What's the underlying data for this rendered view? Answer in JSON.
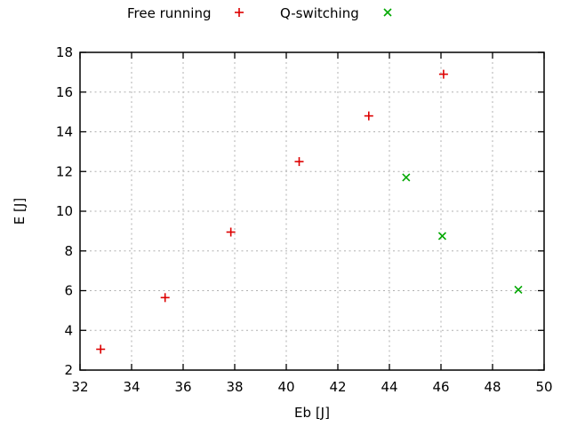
{
  "legend": {
    "items": [
      {
        "label": "Free running",
        "marker": "plus",
        "color": "#dd0000"
      },
      {
        "label": "Q-switching",
        "marker": "cross",
        "color": "#00a800"
      }
    ]
  },
  "chart_data": {
    "type": "scatter",
    "title": "",
    "xlabel": "Eb [J]",
    "ylabel": "E [J]",
    "xlim": [
      32,
      50
    ],
    "ylim": [
      2,
      18
    ],
    "xticks": [
      32,
      34,
      36,
      38,
      40,
      42,
      44,
      46,
      48,
      50
    ],
    "yticks": [
      2,
      4,
      6,
      8,
      10,
      12,
      14,
      16,
      18
    ],
    "grid": "dotted",
    "legend_position": "top-center",
    "series": [
      {
        "name": "Free running",
        "marker": "plus",
        "color": "#dd0000",
        "points": [
          [
            32.8,
            3.05
          ],
          [
            35.3,
            5.65
          ],
          [
            37.85,
            8.95
          ],
          [
            40.5,
            12.5
          ],
          [
            43.2,
            14.8
          ],
          [
            46.1,
            16.9
          ]
        ]
      },
      {
        "name": "Q-switching",
        "marker": "cross",
        "color": "#00a800",
        "points": [
          [
            44.65,
            11.7
          ],
          [
            46.05,
            8.75
          ],
          [
            49.0,
            6.05
          ]
        ]
      }
    ]
  }
}
